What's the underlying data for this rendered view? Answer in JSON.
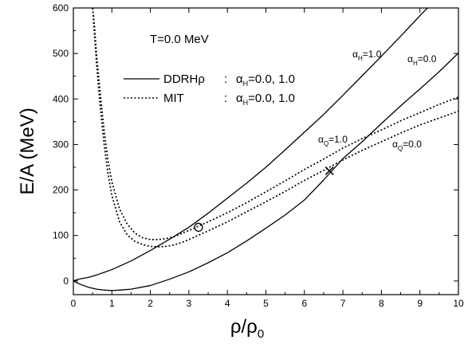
{
  "chart_data": {
    "type": "line",
    "xlabel": "ρ/ρ",
    "xlabel_sub": "0",
    "ylabel": "E/A (MeV)",
    "xlim": [
      0,
      10
    ],
    "ylim": [
      -30,
      600
    ],
    "x_ticks": [
      0,
      1,
      2,
      3,
      4,
      5,
      6,
      7,
      8,
      9,
      10
    ],
    "y_ticks": [
      0,
      100,
      200,
      300,
      400,
      500,
      600
    ],
    "grid": false,
    "legend_position": "upper-left",
    "annotation_temperature": "T=0.0 MeV",
    "legend": [
      {
        "label": "DDRHρ",
        "separator": ":",
        "alpha_symbol": "α",
        "alpha_sub": "H",
        "alpha_values": "=0.0, 1.0",
        "style": "solid"
      },
      {
        "label": "MIT",
        "separator": ":",
        "alpha_symbol": "α",
        "alpha_sub": "H",
        "alpha_values": "=0.0, 1.0",
        "style": "dotted"
      }
    ],
    "curve_labels": [
      {
        "symbol": "α",
        "sub": "H",
        "value": "=1.0"
      },
      {
        "symbol": "α",
        "sub": "H",
        "value": "=0.0"
      },
      {
        "symbol": "α",
        "sub": "Q",
        "value": "=1.0"
      },
      {
        "symbol": "α",
        "sub": "Q",
        "value": "=0.0"
      }
    ],
    "markers": [
      {
        "type": "circle",
        "x": 3.25,
        "y": 118
      },
      {
        "type": "cross",
        "x": 6.65,
        "y": 242
      }
    ],
    "series": [
      {
        "style": "solid",
        "x": [
          0,
          0.1,
          0.2,
          0.4,
          0.6,
          0.8,
          1,
          1.5,
          2,
          2.5,
          3,
          3.5,
          4,
          4.5,
          5,
          5.5,
          6,
          6.5,
          7,
          7.5,
          8,
          8.5,
          9,
          9.5,
          10
        ],
        "y": [
          0,
          3,
          5,
          8,
          13,
          19,
          25,
          44,
          67,
          92,
          118,
          149,
          182,
          215,
          250,
          288,
          327,
          366,
          408,
          451,
          494,
          538,
          583,
          627,
          670
        ]
      },
      {
        "style": "solid",
        "x": [
          0,
          0.1,
          0.2,
          0.4,
          0.6,
          0.8,
          1,
          1.2,
          1.5,
          2,
          2.5,
          3,
          3.5,
          4,
          4.5,
          5,
          5.5,
          6,
          6.5,
          7,
          7.5,
          8,
          8.5,
          9,
          9.5,
          10
        ],
        "y": [
          0,
          -4,
          -8,
          -14,
          -18,
          -20,
          -21,
          -20,
          -18,
          -10,
          4,
          20,
          40,
          62,
          88,
          116,
          145,
          178,
          222,
          269,
          306,
          346,
          385,
          422,
          460,
          501
        ]
      },
      {
        "style": "dotted",
        "x": [
          0.5,
          0.55,
          0.6,
          0.7,
          0.8,
          0.9,
          1,
          1.2,
          1.4,
          1.6,
          1.8,
          2,
          2.2,
          2.4,
          2.6,
          2.8,
          3,
          3.5,
          4,
          4.5,
          5,
          5.5,
          6,
          6.5,
          7,
          7.5,
          8,
          8.5,
          9,
          9.5,
          10
        ],
        "y": [
          600,
          560,
          500,
          410,
          330,
          265,
          218,
          158,
          125,
          105,
          95,
          91,
          91,
          93,
          97,
          104,
          111,
          130,
          150,
          172,
          196,
          220,
          245,
          268,
          292,
          313,
          332,
          352,
          370,
          388,
          404
        ]
      },
      {
        "style": "dotted",
        "x": [
          0.5,
          0.55,
          0.6,
          0.7,
          0.8,
          0.9,
          1,
          1.2,
          1.4,
          1.6,
          1.8,
          2,
          2.2,
          2.4,
          2.6,
          2.8,
          3,
          3.5,
          4,
          4.5,
          5,
          5.5,
          6,
          6.5,
          7,
          7.5,
          8,
          8.5,
          9,
          9.5,
          10
        ],
        "y": [
          600,
          540,
          480,
          380,
          300,
          235,
          188,
          130,
          101,
          87,
          80,
          76,
          75,
          76,
          79,
          84,
          91,
          110,
          130,
          152,
          174,
          197,
          221,
          243,
          266,
          287,
          306,
          325,
          343,
          358,
          373
        ]
      }
    ]
  }
}
